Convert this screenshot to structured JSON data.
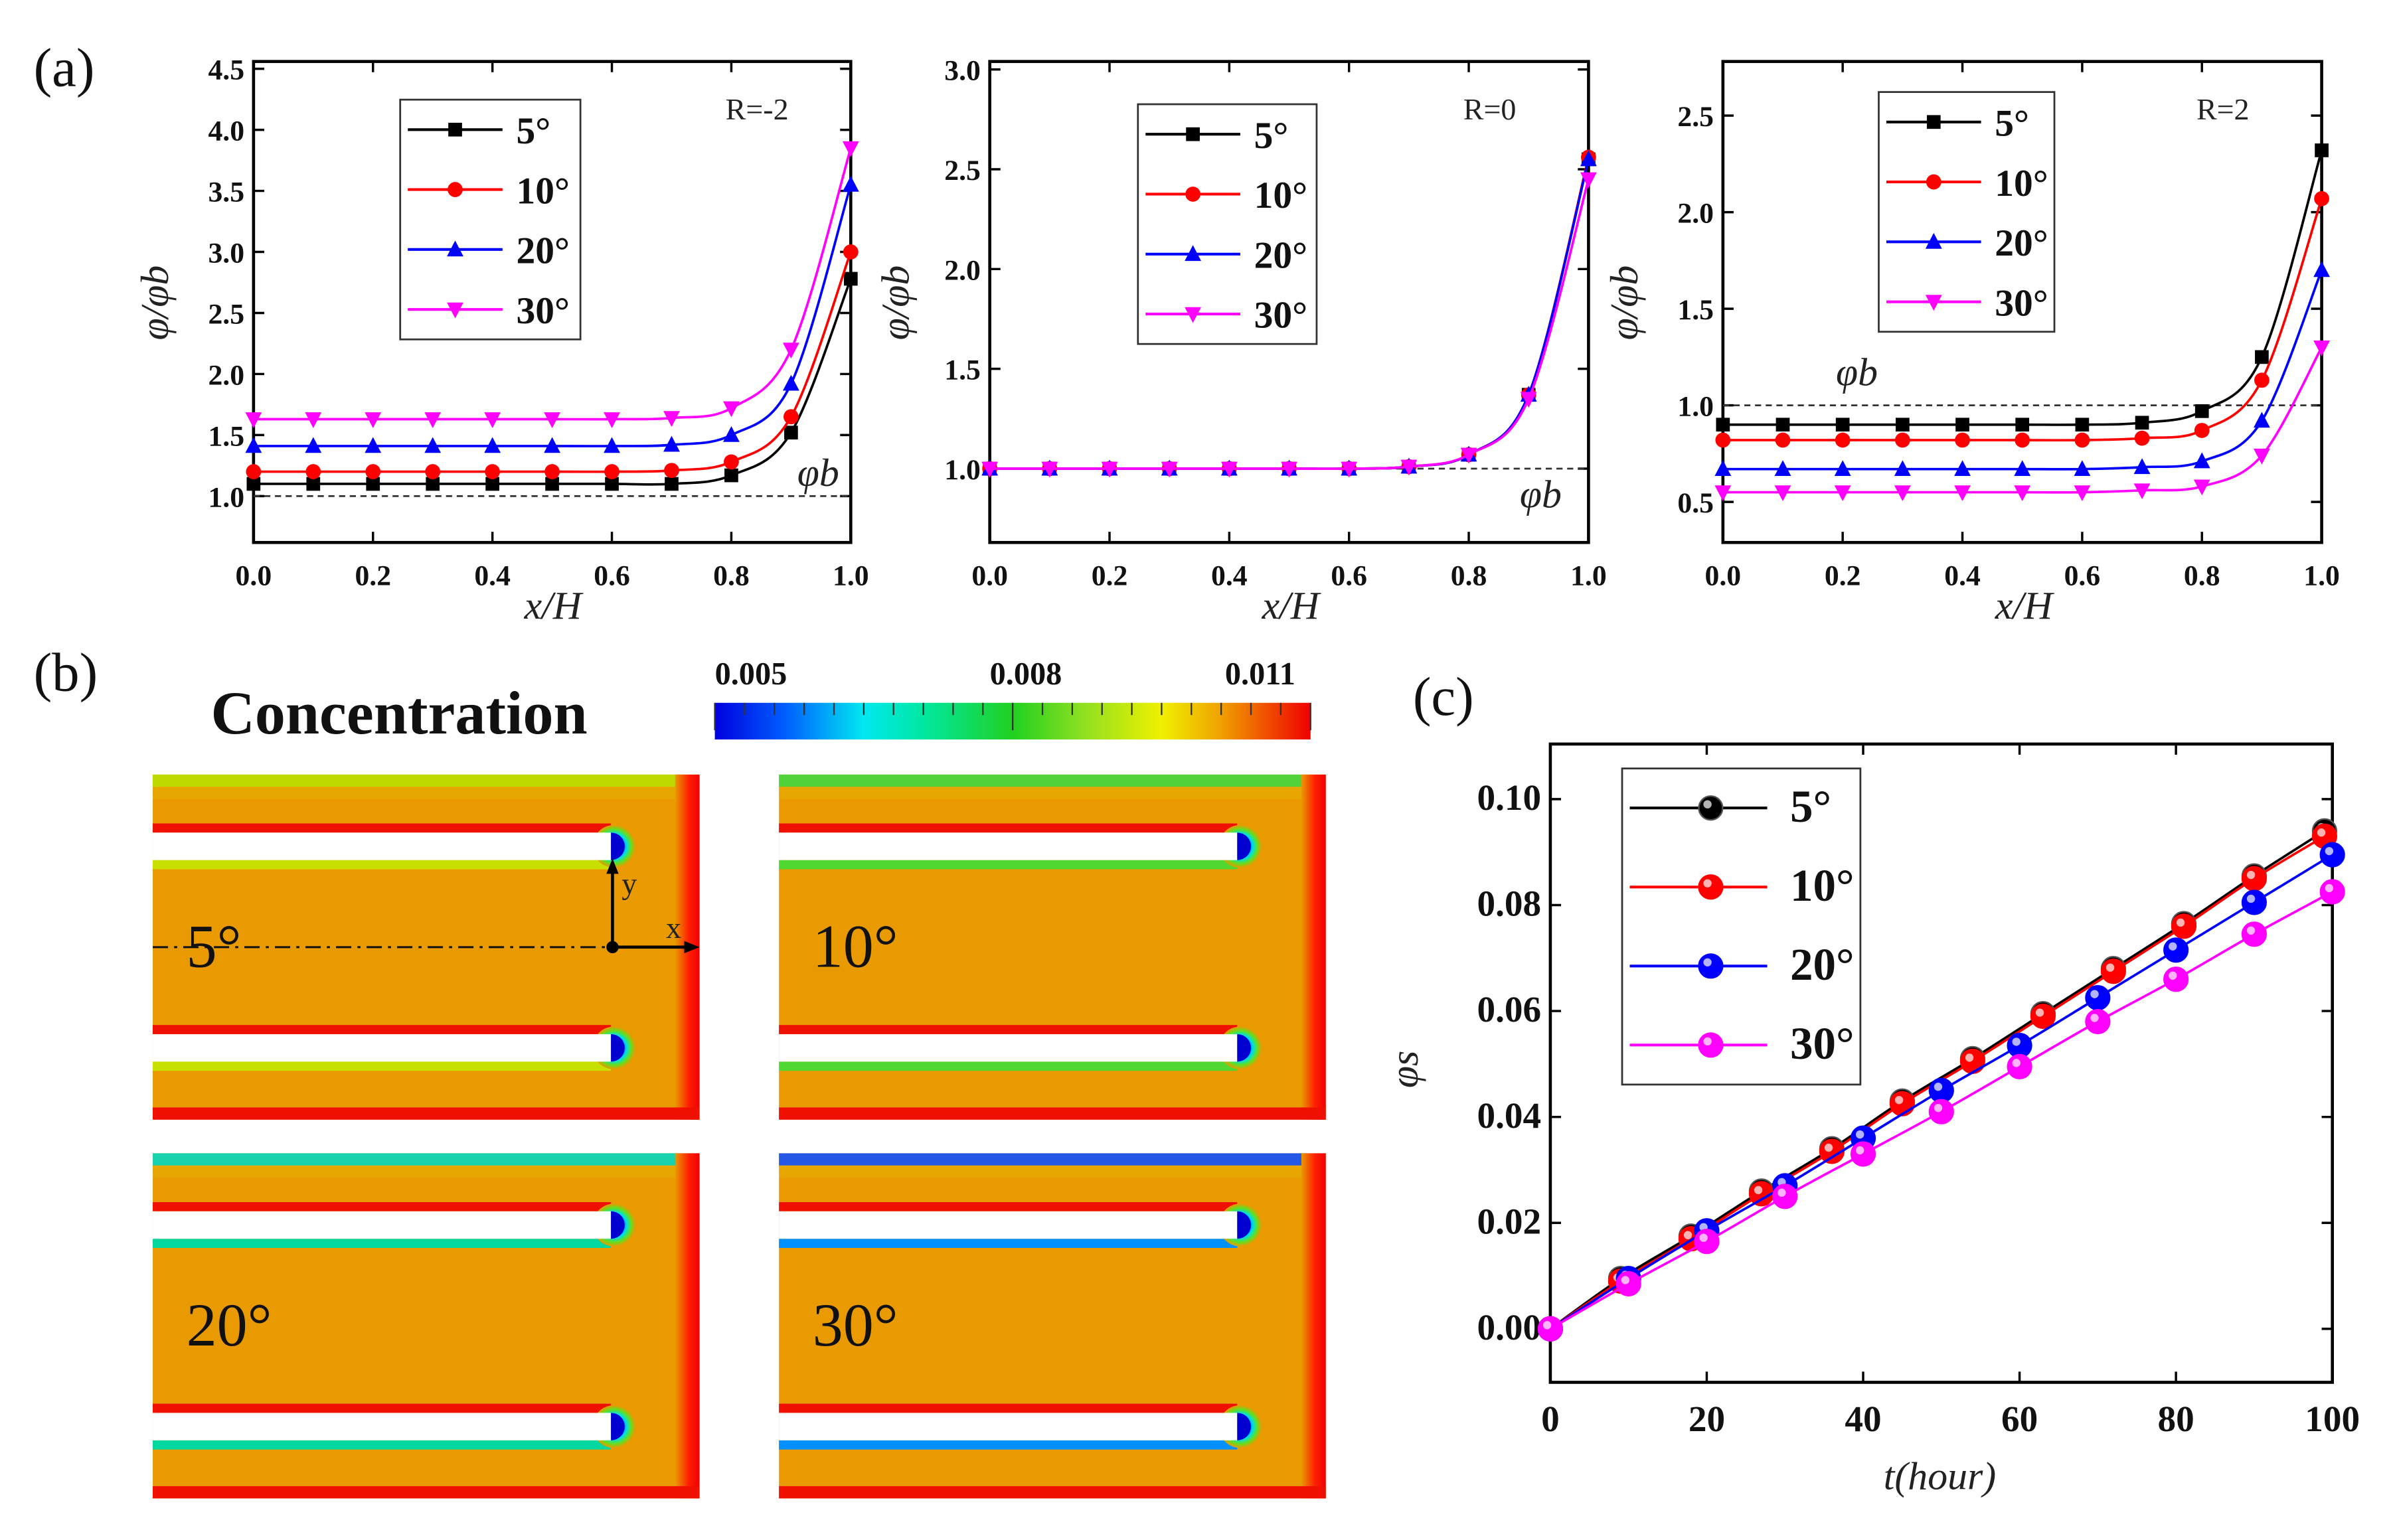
{
  "panel_labels": {
    "a": "(a)",
    "b": "(b)",
    "c": "(c)"
  },
  "chart_data": [
    {
      "type": "line",
      "panel": "a",
      "annotation": "R=-2",
      "reference_label": "φb",
      "reference_value": 1.0,
      "xlabel": "x/H",
      "ylabel": "φ/φb",
      "xlim": [
        0,
        1
      ],
      "ylim": [
        0.62,
        4.56
      ],
      "xticks": [
        "0.0",
        "0.2",
        "0.4",
        "0.6",
        "0.8",
        "1.0"
      ],
      "yticks": [
        "1.0",
        "1.5",
        "2.0",
        "2.5",
        "3.0",
        "3.5",
        "4.0",
        "4.5"
      ],
      "legend_position": "top-left",
      "x": [
        0,
        0.1,
        0.2,
        0.3,
        0.4,
        0.5,
        0.6,
        0.7,
        0.8,
        0.9,
        1.0
      ],
      "series": [
        {
          "name": "5°",
          "color": "#000000",
          "marker": "square",
          "values": [
            1.1,
            1.1,
            1.1,
            1.1,
            1.1,
            1.1,
            1.1,
            1.1,
            1.17,
            1.52,
            2.78
          ]
        },
        {
          "name": "10°",
          "color": "#ff0000",
          "marker": "circle",
          "values": [
            1.2,
            1.2,
            1.2,
            1.2,
            1.2,
            1.2,
            1.2,
            1.21,
            1.28,
            1.65,
            3.0
          ]
        },
        {
          "name": "20°",
          "color": "#0000ff",
          "marker": "triangle-up",
          "values": [
            1.41,
            1.41,
            1.41,
            1.41,
            1.41,
            1.41,
            1.41,
            1.42,
            1.5,
            1.92,
            3.55
          ]
        },
        {
          "name": "30°",
          "color": "#ff00ff",
          "marker": "triangle-down",
          "values": [
            1.63,
            1.63,
            1.63,
            1.63,
            1.63,
            1.63,
            1.63,
            1.64,
            1.72,
            2.2,
            3.85
          ]
        }
      ]
    },
    {
      "type": "line",
      "panel": "a",
      "annotation": "R=0",
      "reference_label": "φb",
      "reference_value": 1.0,
      "xlabel": "x/H",
      "ylabel": "φ/φb",
      "xlim": [
        0,
        1
      ],
      "ylim": [
        0.63,
        3.04
      ],
      "xticks": [
        "0.0",
        "0.2",
        "0.4",
        "0.6",
        "0.8",
        "1.0"
      ],
      "yticks": [
        "1.0",
        "1.5",
        "2.0",
        "2.5",
        "3.0"
      ],
      "legend_position": "top-center",
      "x": [
        0,
        0.1,
        0.2,
        0.3,
        0.4,
        0.5,
        0.6,
        0.7,
        0.8,
        0.9,
        1.0
      ],
      "series": [
        {
          "name": "5°",
          "color": "#000000",
          "marker": "square",
          "values": [
            1.0,
            1.0,
            1.0,
            1.0,
            1.0,
            1.0,
            1.0,
            1.01,
            1.07,
            1.37,
            2.55
          ]
        },
        {
          "name": "10°",
          "color": "#ff0000",
          "marker": "circle",
          "values": [
            1.0,
            1.0,
            1.0,
            1.0,
            1.0,
            1.0,
            1.0,
            1.01,
            1.07,
            1.37,
            2.56
          ]
        },
        {
          "name": "20°",
          "color": "#0000ff",
          "marker": "triangle-up",
          "values": [
            1.0,
            1.0,
            1.0,
            1.0,
            1.0,
            1.0,
            1.0,
            1.01,
            1.07,
            1.37,
            2.55
          ]
        },
        {
          "name": "30°",
          "color": "#ff00ff",
          "marker": "triangle-down",
          "values": [
            1.0,
            1.0,
            1.0,
            1.0,
            1.0,
            1.0,
            1.0,
            1.01,
            1.07,
            1.35,
            2.45
          ]
        }
      ]
    },
    {
      "type": "line",
      "panel": "a",
      "annotation": "R=2",
      "reference_label": "φb",
      "reference_value": 1.0,
      "xlabel": "x/H",
      "ylabel": "φ/φb",
      "xlim": [
        0,
        1
      ],
      "ylim": [
        0.29,
        2.78
      ],
      "xticks": [
        "0.0",
        "0.2",
        "0.4",
        "0.6",
        "0.8",
        "1.0"
      ],
      "yticks": [
        "0.5",
        "1.0",
        "1.5",
        "2.0",
        "2.5"
      ],
      "legend_position": "top-center",
      "x": [
        0,
        0.1,
        0.2,
        0.3,
        0.4,
        0.5,
        0.6,
        0.7,
        0.8,
        0.9,
        1.0
      ],
      "series": [
        {
          "name": "5°",
          "color": "#000000",
          "marker": "square",
          "values": [
            0.9,
            0.9,
            0.9,
            0.9,
            0.9,
            0.9,
            0.9,
            0.91,
            0.97,
            1.25,
            2.32
          ]
        },
        {
          "name": "10°",
          "color": "#ff0000",
          "marker": "circle",
          "values": [
            0.82,
            0.82,
            0.82,
            0.82,
            0.82,
            0.82,
            0.82,
            0.83,
            0.87,
            1.13,
            2.07
          ]
        },
        {
          "name": "20°",
          "color": "#0000ff",
          "marker": "triangle-up",
          "values": [
            0.67,
            0.67,
            0.67,
            0.67,
            0.67,
            0.67,
            0.67,
            0.68,
            0.71,
            0.92,
            1.7
          ]
        },
        {
          "name": "30°",
          "color": "#ff00ff",
          "marker": "triangle-down",
          "values": [
            0.55,
            0.55,
            0.55,
            0.55,
            0.55,
            0.55,
            0.55,
            0.56,
            0.58,
            0.74,
            1.3
          ]
        }
      ]
    },
    {
      "type": "line",
      "panel": "c",
      "xlabel": "t(hour)",
      "ylabel": "φs",
      "xlim": [
        0,
        100
      ],
      "ylim": [
        -0.0101,
        0.1104
      ],
      "xticks": [
        "0",
        "20",
        "40",
        "60",
        "80",
        "100"
      ],
      "yticks": [
        "0.00",
        "0.02",
        "0.04",
        "0.06",
        "0.08",
        "0.10"
      ],
      "legend_position": "top-left",
      "series": [
        {
          "name": "5°",
          "color": "#000000",
          "marker": "sphere",
          "x": [
            0,
            9,
            18,
            27,
            36,
            45,
            54,
            63,
            72,
            81,
            90,
            99
          ],
          "values": [
            0,
            0.0095,
            0.0175,
            0.026,
            0.034,
            0.043,
            0.051,
            0.0595,
            0.068,
            0.0765,
            0.0855,
            0.094
          ]
        },
        {
          "name": "10°",
          "color": "#ff0000",
          "marker": "sphere",
          "x": [
            0,
            9,
            18,
            27,
            36,
            45,
            54,
            63,
            72,
            81,
            90,
            99
          ],
          "values": [
            0,
            0.009,
            0.017,
            0.0255,
            0.0335,
            0.0425,
            0.0505,
            0.059,
            0.0675,
            0.076,
            0.085,
            0.093
          ]
        },
        {
          "name": "20°",
          "color": "#0000ff",
          "marker": "sphere",
          "x": [
            0,
            10,
            20,
            30,
            40,
            50,
            60,
            70,
            80,
            90,
            100
          ],
          "values": [
            0,
            0.0095,
            0.0185,
            0.027,
            0.036,
            0.045,
            0.0535,
            0.0625,
            0.0715,
            0.0805,
            0.0895
          ]
        },
        {
          "name": "30°",
          "color": "#ff00ff",
          "marker": "sphere",
          "x": [
            0,
            10,
            20,
            30,
            40,
            50,
            60,
            70,
            80,
            90,
            100
          ],
          "values": [
            0,
            0.0085,
            0.0165,
            0.025,
            0.033,
            0.041,
            0.0495,
            0.058,
            0.066,
            0.0745,
            0.0825
          ]
        }
      ]
    }
  ],
  "contour": {
    "title": "Concentration",
    "colorbar_ticks": [
      "0.005",
      "0.008",
      "0.011"
    ],
    "colorbar_range": [
      0.005,
      0.011
    ],
    "axis_labels": {
      "x": "x",
      "y": "y"
    },
    "panels": [
      {
        "label": "5°"
      },
      {
        "label": "10°"
      },
      {
        "label": "20°"
      },
      {
        "label": "30°"
      }
    ]
  }
}
